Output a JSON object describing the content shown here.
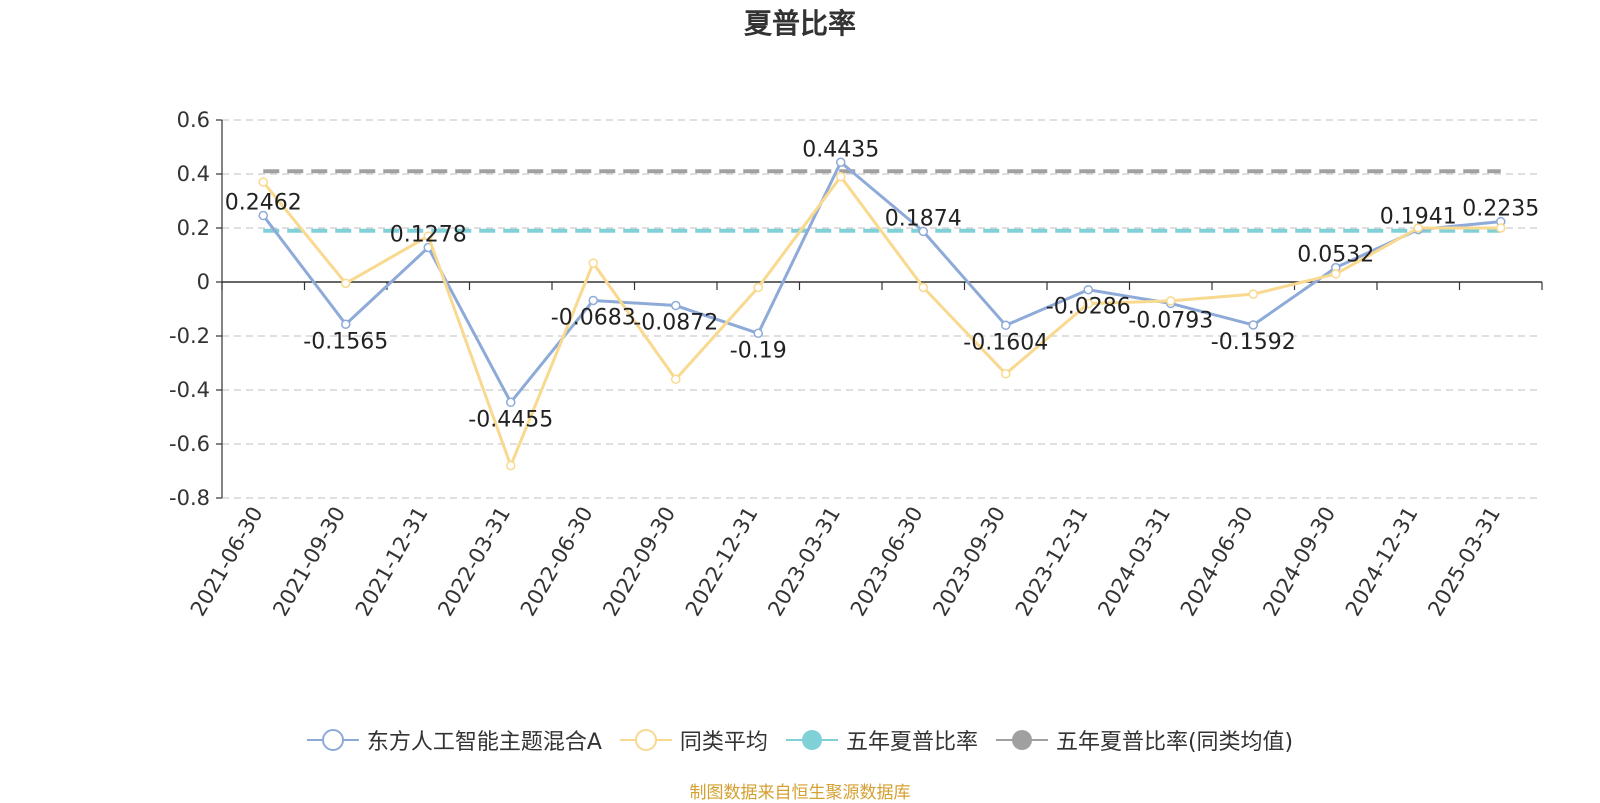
{
  "chart_data": {
    "type": "line",
    "title": "夏普比率",
    "xlabel": "",
    "ylabel": "",
    "ylim": [
      -0.8,
      0.6
    ],
    "yticks": [
      -0.8,
      -0.6,
      -0.4,
      -0.2,
      0,
      0.2,
      0.4,
      0.6
    ],
    "ytick_labels": [
      "-0.8",
      "-0.6",
      "-0.4",
      "-0.2",
      "0",
      "0.2",
      "0.4",
      "0.6"
    ],
    "grid": true,
    "legend_position": "bottom",
    "categories": [
      "2021-06-30",
      "2021-09-30",
      "2021-12-31",
      "2022-03-31",
      "2022-06-30",
      "2022-09-30",
      "2022-12-31",
      "2023-03-31",
      "2023-06-30",
      "2023-09-30",
      "2023-12-31",
      "2024-03-31",
      "2024-06-30",
      "2024-09-30",
      "2024-12-31",
      "2025-03-31"
    ],
    "series": [
      {
        "name": "东方人工智能主题混合A",
        "color": "#8eaad8",
        "values": [
          0.2462,
          -0.1565,
          0.1278,
          -0.4455,
          -0.0683,
          -0.0872,
          -0.19,
          0.4435,
          0.1874,
          -0.1604,
          -0.0286,
          -0.0793,
          -0.1592,
          0.0532,
          0.1941,
          0.2235
        ],
        "labels": [
          "0.2462",
          "-0.1565",
          "0.1278",
          "-0.4455",
          "-0.0683",
          "-0.0872",
          "-0.19",
          "0.4435",
          "0.1874",
          "-0.1604",
          "-0.0286",
          "-0.0793",
          "-0.1592",
          "0.0532",
          "0.1941",
          "0.2235"
        ]
      },
      {
        "name": "同类平均",
        "color": "#f9d990",
        "values": [
          0.37,
          -0.005,
          0.17,
          -0.68,
          0.07,
          -0.36,
          -0.02,
          0.39,
          -0.02,
          -0.34,
          -0.08,
          -0.07,
          -0.045,
          0.03,
          0.2,
          0.2
        ]
      }
    ],
    "reference_lines": [
      {
        "name": "五年夏普比率",
        "value": 0.19,
        "color": "#80d0d8"
      },
      {
        "name": "五年夏普比率(同类均值)",
        "value": 0.41,
        "color": "#a0a0a0"
      }
    ]
  },
  "legend": {
    "items": [
      {
        "label": "东方人工智能主题混合A",
        "color": "#8eaad8",
        "filled": false
      },
      {
        "label": "同类平均",
        "color": "#f9d990",
        "filled": false
      },
      {
        "label": "五年夏普比率",
        "color": "#80d0d8",
        "filled": true
      },
      {
        "label": "五年夏普比率(同类均值)",
        "color": "#a0a0a0",
        "filled": true
      }
    ]
  },
  "footer": {
    "source": "制图数据来自恒生聚源数据库"
  }
}
